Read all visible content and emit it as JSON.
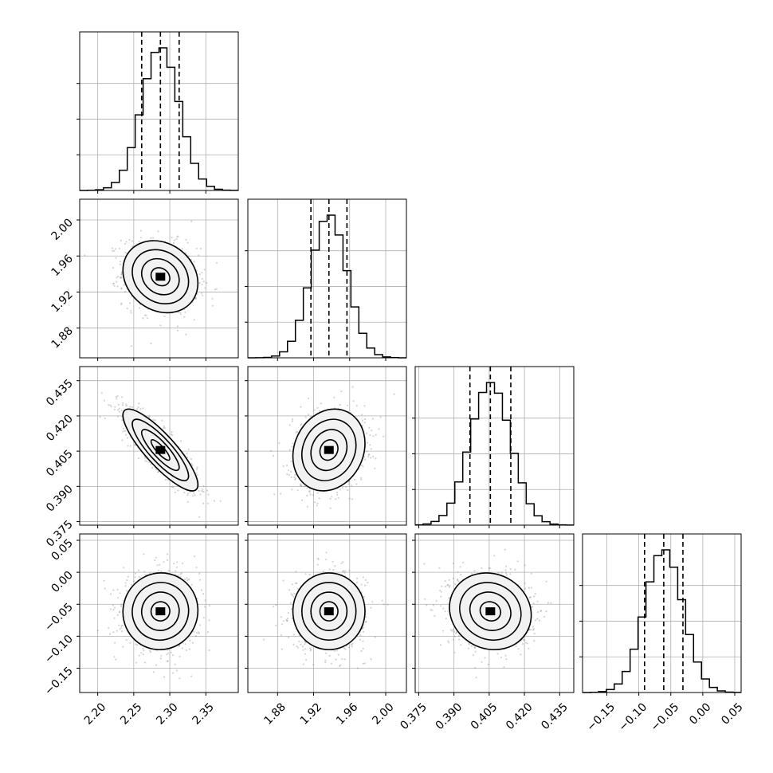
{
  "chart_data": {
    "type": "corner",
    "title": "",
    "grid": true,
    "colors": {
      "hist": "#000000",
      "density": "#000000",
      "points": "#808080",
      "grid": "#b0b0b0"
    },
    "parameters": [
      {
        "id": "p1",
        "mean": 2.287,
        "std": 0.026,
        "range": [
          2.175,
          2.395
        ],
        "quantiles": [
          2.261,
          2.287,
          2.313
        ],
        "ticks": [
          2.2,
          2.25,
          2.3,
          2.35
        ],
        "tick_labels": [
          "2.20",
          "2.25",
          "2.30",
          "2.35"
        ]
      },
      {
        "id": "p2",
        "mean": 1.937,
        "std": 0.02,
        "range": [
          1.847,
          2.023
        ],
        "quantiles": [
          1.917,
          1.937,
          1.957
        ],
        "ticks": [
          1.88,
          1.92,
          1.96,
          2.0
        ],
        "tick_labels": [
          "1.88",
          "1.92",
          "1.96",
          "2.00"
        ]
      },
      {
        "id": "p3",
        "mean": 0.4055,
        "std": 0.0087,
        "range": [
          0.3735,
          0.441
        ],
        "quantiles": [
          0.3968,
          0.4055,
          0.4142
        ],
        "ticks": [
          0.375,
          0.39,
          0.405,
          0.42,
          0.435
        ],
        "tick_labels": [
          "0.375",
          "0.390",
          "0.405",
          "0.420",
          "0.435"
        ]
      },
      {
        "id": "p4",
        "mean": -0.061,
        "std": 0.03,
        "range": [
          -0.188,
          0.06
        ],
        "quantiles": [
          -0.091,
          -0.061,
          -0.031
        ],
        "ticks": [
          -0.15,
          -0.1,
          -0.05,
          0.0,
          0.05
        ],
        "tick_labels": [
          "−0.15",
          "−0.10",
          "−0.05",
          "0.00",
          "0.05"
        ]
      }
    ],
    "correlations": {
      "p1_p2": -0.18,
      "p1_p3": -0.85,
      "p2_p3": 0.16,
      "p1_p4": 0.02,
      "p2_p4": 0.0,
      "p3_p4": -0.1
    },
    "histogram_bins": 20,
    "density_levels": [
      0.5,
      1.0,
      1.5,
      2.0
    ]
  }
}
